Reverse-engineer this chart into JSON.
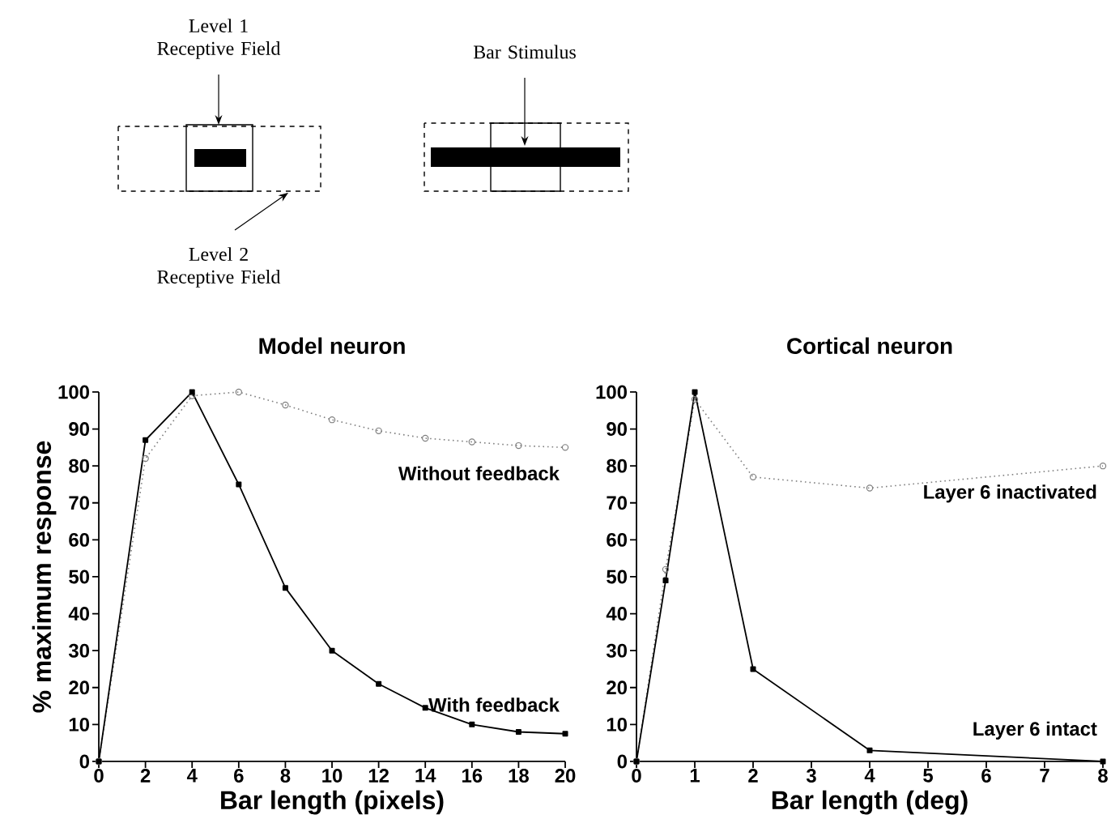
{
  "chart_data": [
    {
      "type": "other",
      "annotations": [
        "Level 1 Receptive Field",
        "Bar Stimulus",
        "Level 2 Receptive Field"
      ]
    },
    {
      "type": "line",
      "title": "Model neuron",
      "xlabel": "Bar length (pixels)",
      "ylabel": "% maximum response",
      "xlim": [
        0,
        20
      ],
      "ylim": [
        0,
        100
      ],
      "xticks": [
        0,
        2,
        4,
        6,
        8,
        10,
        12,
        14,
        16,
        18,
        20
      ],
      "yticks": [
        0,
        10,
        20,
        30,
        40,
        50,
        60,
        70,
        80,
        90,
        100
      ],
      "grid": false,
      "legend": false,
      "x": [
        0,
        2,
        4,
        6,
        8,
        10,
        12,
        14,
        16,
        18,
        20
      ],
      "series": [
        {
          "name": "Without feedback",
          "color": "#808080",
          "marker": "circle",
          "line_style": "dotted",
          "values": [
            0,
            82,
            99,
            100,
            96.5,
            92.5,
            89.5,
            87.5,
            86.5,
            85.5,
            85
          ]
        },
        {
          "name": "With feedback",
          "color": "#000000",
          "marker": "square",
          "line_style": "solid",
          "values": [
            0,
            87,
            100,
            75,
            47,
            30,
            21,
            14.5,
            10,
            8,
            7.5
          ]
        }
      ]
    },
    {
      "type": "line",
      "title": "Cortical neuron",
      "xlabel": "Bar length (deg)",
      "xlim": [
        0,
        8
      ],
      "ylim": [
        0,
        100
      ],
      "xticks": [
        0,
        1,
        2,
        3,
        4,
        5,
        6,
        7,
        8
      ],
      "yticks": [
        0,
        10,
        20,
        30,
        40,
        50,
        60,
        70,
        80,
        90,
        100
      ],
      "grid": false,
      "legend": false,
      "x": [
        0,
        0.5,
        1,
        2,
        4,
        8
      ],
      "series": [
        {
          "name": "Layer 6 inactivated",
          "color": "#808080",
          "marker": "circle",
          "line_style": "dotted",
          "values": [
            0,
            52,
            98,
            77,
            74,
            80
          ]
        },
        {
          "name": "Layer 6 intact",
          "color": "#000000",
          "marker": "square",
          "line_style": "solid",
          "values": [
            0,
            49,
            100,
            25,
            3,
            0
          ]
        }
      ]
    }
  ]
}
